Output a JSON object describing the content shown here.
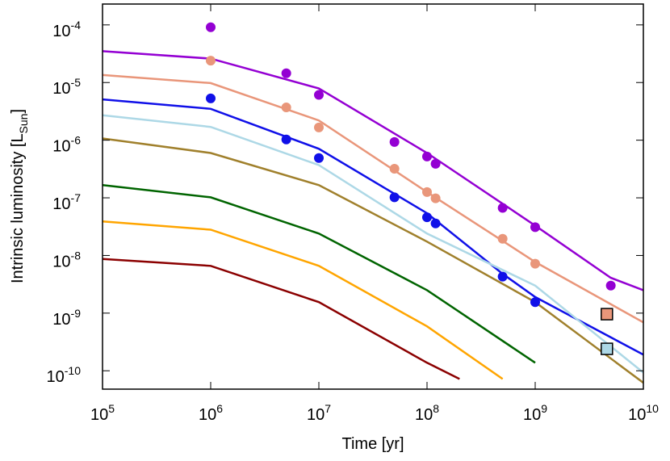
{
  "chart_data": {
    "type": "line",
    "xlabel": "Time [yr]",
    "ylabel": "Intrinsic luminosity [L",
    "ylabel_sub": "Sun",
    "ylabel_end": "]",
    "xscale": "log",
    "yscale": "log",
    "xlim": [
      100000,
      10000000000
    ],
    "ylim": [
      4.8e-11,
      0.00023
    ],
    "xticks": [
      {
        "value": 100000,
        "label": "10",
        "sup": "5"
      },
      {
        "value": 1000000,
        "label": "10",
        "sup": "6"
      },
      {
        "value": 10000000,
        "label": "10",
        "sup": "7"
      },
      {
        "value": 100000000,
        "label": "10",
        "sup": "8"
      },
      {
        "value": 1000000000,
        "label": "10",
        "sup": "9"
      },
      {
        "value": 10000000000,
        "label": "10",
        "sup": "10"
      }
    ],
    "yticks": [
      {
        "value": 1e-10,
        "label": "10",
        "sup": "-10"
      },
      {
        "value": 1e-09,
        "label": "10",
        "sup": "-9"
      },
      {
        "value": 1e-08,
        "label": "10",
        "sup": "-8"
      },
      {
        "value": 1e-07,
        "label": "10",
        "sup": "-7"
      },
      {
        "value": 1e-06,
        "label": "10",
        "sup": "-6"
      },
      {
        "value": 1e-05,
        "label": "10",
        "sup": "-5"
      },
      {
        "value": 0.0001,
        "label": "10",
        "sup": "-4"
      }
    ],
    "series": [
      {
        "color": "#9400d3",
        "marker": "line",
        "x": [
          100000,
          1000000,
          10000000,
          100000000,
          1000000000,
          5000000000,
          10000000000
        ],
        "values": [
          3.5e-05,
          2.6e-05,
          7.9e-06,
          6e-07,
          3.3e-08,
          4.1e-09,
          2.5e-09
        ]
      },
      {
        "color": "#e9967a",
        "marker": "line",
        "x": [
          100000,
          1000000,
          10000000,
          100000000,
          1000000000,
          10000000000
        ],
        "values": [
          1.35e-05,
          9.8e-06,
          2.2e-06,
          1.26e-07,
          7.7e-09,
          6.9e-10
        ]
      },
      {
        "color": "#1010e8",
        "marker": "line",
        "x": [
          100000,
          1000000,
          10000000,
          100000000,
          500000000,
          1000000000,
          10000000000
        ],
        "values": [
          5.1e-06,
          3.5e-06,
          7.1e-07,
          5.4e-08,
          4.8e-09,
          1.9e-09,
          1.9e-10
        ]
      },
      {
        "color": "#add8e6",
        "marker": "line",
        "x": [
          100000,
          1000000,
          10000000,
          100000000,
          1000000000,
          10000000000
        ],
        "values": [
          2.7e-06,
          1.7e-06,
          3.7e-07,
          2.4e-08,
          3e-09,
          9.3e-11
        ]
      },
      {
        "color": "#a0802c",
        "marker": "line",
        "x": [
          100000,
          1000000,
          10000000,
          100000000,
          1000000000,
          10000000000
        ],
        "values": [
          1.07e-06,
          6e-07,
          1.66e-07,
          1.74e-08,
          1.55e-09,
          6.2e-11
        ]
      },
      {
        "color": "#006400",
        "marker": "line",
        "x": [
          100000,
          1000000,
          10000000,
          100000000,
          1000000000
        ],
        "values": [
          1.66e-07,
          1.02e-07,
          2.4e-08,
          2.5e-09,
          1.38e-10
        ]
      },
      {
        "color": "#ffa500",
        "marker": "line",
        "x": [
          100000,
          1000000,
          10000000,
          100000000,
          500000000
        ],
        "values": [
          3.9e-08,
          2.8e-08,
          6.6e-09,
          5.9e-10,
          7.2e-11
        ]
      },
      {
        "color": "#8b0000",
        "marker": "line",
        "x": [
          100000,
          1000000,
          10000000,
          100000000,
          200000000
        ],
        "values": [
          8.7e-09,
          6.6e-09,
          1.55e-09,
          1.38e-10,
          7.2e-11
        ]
      },
      {
        "color": "#9400d3",
        "marker": "circle",
        "x": [
          1000000,
          5000000,
          10000000,
          50000000,
          100000000,
          120000000,
          500000000,
          1000000000,
          5000000000
        ],
        "values": [
          9.1e-05,
          1.45e-05,
          6.1e-06,
          9.3e-07,
          5.2e-07,
          3.9e-07,
          6.7e-08,
          3.1e-08,
          3e-09
        ]
      },
      {
        "color": "#e9967a",
        "marker": "circle",
        "x": [
          1000000,
          5000000,
          10000000,
          50000000,
          100000000,
          120000000,
          500000000,
          1000000000
        ],
        "values": [
          2.4e-05,
          3.7e-06,
          1.66e-06,
          3.2e-07,
          1.26e-07,
          9.8e-08,
          1.95e-08,
          7.2e-09
        ]
      },
      {
        "color": "#1010e8",
        "marker": "circle",
        "x": [
          1000000,
          5000000,
          10000000,
          50000000,
          100000000,
          120000000,
          500000000,
          1000000000
        ],
        "values": [
          5.3e-06,
          1.03e-06,
          4.9e-07,
          1.02e-07,
          4.6e-08,
          3.6e-08,
          4.3e-09,
          1.55e-09
        ]
      },
      {
        "color": "#e9967a",
        "marker": "square",
        "x": [
          4600000000
        ],
        "values": [
          9.6e-10
        ]
      },
      {
        "color": "#add8e6",
        "marker": "square",
        "x": [
          4600000000
        ],
        "values": [
          2.4e-10
        ]
      }
    ]
  }
}
